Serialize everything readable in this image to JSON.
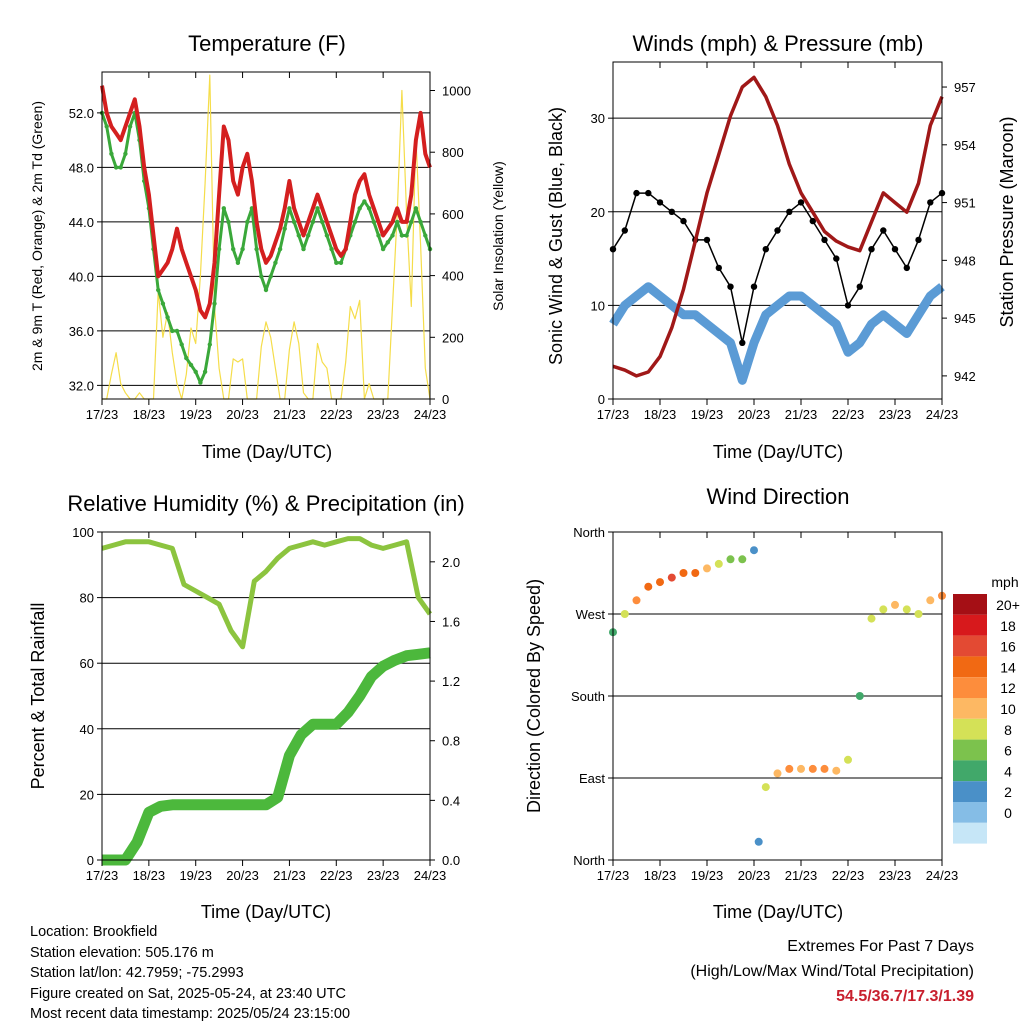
{
  "ticks_x": [
    "17/23",
    "18/23",
    "19/23",
    "20/23",
    "21/23",
    "22/23",
    "23/23",
    "24/23"
  ],
  "panels": {
    "temperature": {
      "title": "Temperature (F)",
      "xlabel": "Time (Day/UTC)",
      "ylabel_left": "2m & 9m T (Red, Orange) & 2m Td (Green)",
      "ylabel_right": "Solar Insolation (Yellow)",
      "yticks_left": [
        "32.0",
        "36.0",
        "40.0",
        "44.0",
        "48.0",
        "52.0"
      ],
      "yticks_right": [
        "0",
        "200",
        "400",
        "600",
        "800",
        "1000"
      ]
    },
    "winds": {
      "title": "Winds (mph) & Pressure (mb)",
      "xlabel": "Time (Day/UTC)",
      "ylabel_left": "Sonic Wind & Gust (Blue, Black)",
      "ylabel_right": "Station Pressure (Maroon)",
      "yticks_left": [
        "0",
        "10",
        "20",
        "30"
      ],
      "yticks_right": [
        "942",
        "945",
        "948",
        "951",
        "954",
        "957"
      ]
    },
    "humidity": {
      "title": "Relative Humidity (%) & Precipitation (in)",
      "xlabel": "Time (Day/UTC)",
      "ylabel_left": "Percent & Total Rainfall",
      "yticks_left": [
        "0",
        "20",
        "40",
        "60",
        "80",
        "100"
      ],
      "yticks_right": [
        "0.0",
        "0.4",
        "0.8",
        "1.2",
        "1.6",
        "2.0"
      ]
    },
    "direction": {
      "title": "Wind Direction",
      "xlabel": "Time (Day/UTC)",
      "ylabel_left": "Direction (Colored By Speed)",
      "yticks_left": [
        "North",
        "East",
        "South",
        "West",
        "North"
      ],
      "legend_title": "mph",
      "legend_labels": [
        "20+",
        "18",
        "16",
        "14",
        "12",
        "10",
        "8",
        "6",
        "4",
        "2",
        "0"
      ],
      "legend_colors": [
        "#a50f15",
        "#d7191c",
        "#e34a33",
        "#f16913",
        "#fd8d3c",
        "#fdb863",
        "#d4e157",
        "#7cc24d",
        "#41a86a",
        "#4a90c8",
        "#85bde6",
        "#c6e6f7"
      ]
    }
  },
  "info": {
    "location": "Location: Brookfield",
    "elevation": "Station elevation: 505.176 m",
    "latlon": "Station lat/lon: 42.7959; -75.2993",
    "created": "Figure created on Sat, 2025-05-24, at 23:40 UTC",
    "recent": "Most recent data timestamp: 2025/05/24 23:15:00"
  },
  "extremes": {
    "title": "Extremes For Past 7 Days",
    "subtitle": "(High/Low/Max Wind/Total Precipitation)",
    "values": "54.5/36.7/17.3/1.39"
  },
  "colors": {
    "temp": "#d41f1f",
    "dewpoint": "#3aa83a",
    "solar": "#f5dd4a",
    "gust": "#000000",
    "wind": "#5b9bd5",
    "pressure": "#a01818",
    "rh": "#8cc43f",
    "precip": "#4cb83c"
  },
  "chart_data": [
    {
      "type": "line",
      "title": "Temperature (F)",
      "xlabel": "Time (Day/UTC)",
      "ylabel": "2m & 9m T (Red, Orange) & 2m Td (Green)",
      "y2label": "Solar Insolation (Yellow)",
      "ylim": [
        31,
        55
      ],
      "y2lim": [
        0,
        1060
      ],
      "x": [
        0,
        0.1,
        0.2,
        0.3,
        0.4,
        0.5,
        0.6,
        0.7,
        0.8,
        0.9,
        1.0,
        1.1,
        1.2,
        1.3,
        1.4,
        1.5,
        1.6,
        1.7,
        1.8,
        1.9,
        2.0,
        2.1,
        2.2,
        2.3,
        2.4,
        2.5,
        2.6,
        2.7,
        2.8,
        2.9,
        3.0,
        3.1,
        3.2,
        3.3,
        3.4,
        3.5,
        3.6,
        3.7,
        3.8,
        3.9,
        4.0,
        4.1,
        4.2,
        4.3,
        4.4,
        4.5,
        4.6,
        4.7,
        4.8,
        4.9,
        5.0,
        5.1,
        5.2,
        5.3,
        5.4,
        5.5,
        5.6,
        5.7,
        5.8,
        5.9,
        6.0,
        6.1,
        6.2,
        6.3,
        6.4,
        6.5,
        6.6,
        6.7,
        6.8,
        6.9,
        7.0
      ],
      "series": [
        {
          "name": "2m T",
          "values": [
            54,
            52,
            51,
            50.5,
            50,
            51,
            52,
            53,
            51,
            48,
            46,
            43,
            40,
            40.5,
            41,
            42,
            43.5,
            42,
            41,
            40,
            39,
            37.5,
            37,
            38,
            41,
            46,
            51,
            50,
            47,
            46,
            48,
            49,
            47,
            44,
            42,
            41,
            41.5,
            42.5,
            43.5,
            45,
            47,
            45,
            44,
            43,
            44,
            45,
            46,
            45,
            44,
            43,
            42,
            41.5,
            42,
            44,
            46,
            47,
            47.5,
            46,
            45,
            44,
            43,
            43.5,
            44,
            45,
            44,
            44,
            46,
            50,
            52,
            49,
            48
          ]
        },
        {
          "name": "2m Td",
          "values": [
            52,
            51,
            49,
            48,
            48,
            49,
            51,
            52,
            50,
            47,
            45,
            42,
            39,
            38,
            37,
            36,
            36,
            35,
            34,
            33.5,
            33,
            32.2,
            33,
            35,
            38,
            42,
            45,
            44,
            42,
            41,
            42,
            44,
            45,
            42,
            40,
            39,
            40,
            41,
            42,
            43.5,
            45,
            44,
            43,
            42,
            43,
            44,
            45,
            44,
            43,
            42,
            41,
            41,
            42,
            43,
            44,
            45,
            45.5,
            45,
            44,
            43,
            42,
            42.5,
            43,
            44,
            43,
            43,
            44,
            45,
            44,
            43,
            42
          ]
        },
        {
          "name": "Solar Insolation",
          "values": [
            0,
            0,
            80,
            150,
            50,
            20,
            0,
            0,
            20,
            0,
            0,
            0,
            350,
            200,
            280,
            150,
            50,
            0,
            80,
            230,
            180,
            400,
            700,
            1050,
            300,
            100,
            0,
            0,
            130,
            120,
            130,
            0,
            0,
            0,
            170,
            250,
            200,
            100,
            0,
            0,
            160,
            250,
            180,
            20,
            0,
            0,
            180,
            120,
            100,
            0,
            0,
            0,
            120,
            300,
            260,
            320,
            0,
            50,
            0,
            0,
            0,
            0,
            300,
            600,
            1000,
            600,
            300,
            850,
            500,
            100,
            0
          ]
        }
      ]
    },
    {
      "type": "line",
      "title": "Winds (mph) & Pressure (mb)",
      "xlabel": "Time (Day/UTC)",
      "ylabel": "Sonic Wind & Gust (Blue, Black)",
      "y2label": "Station Pressure (Maroon)",
      "ylim": [
        0,
        36
      ],
      "y2lim": [
        940.8,
        958.3
      ],
      "x": [
        0,
        0.25,
        0.5,
        0.75,
        1.0,
        1.25,
        1.5,
        1.75,
        2.0,
        2.25,
        2.5,
        2.75,
        3.0,
        3.25,
        3.5,
        3.75,
        4.0,
        4.25,
        4.5,
        4.75,
        5.0,
        5.25,
        5.5,
        5.75,
        6.0,
        6.25,
        6.5,
        6.75,
        7.0
      ],
      "series": [
        {
          "name": "Gust",
          "values": [
            16,
            18,
            22,
            22,
            21,
            20,
            19,
            17,
            17,
            14,
            12,
            6,
            12,
            16,
            18,
            20,
            21,
            19,
            17,
            15,
            10,
            12,
            16,
            18,
            16,
            14,
            17,
            21,
            22
          ]
        },
        {
          "name": "Wind",
          "values": [
            8,
            10,
            11,
            12,
            11,
            10,
            9,
            9,
            8,
            7,
            6,
            2,
            6,
            9,
            10,
            11,
            11,
            10,
            9,
            8,
            5,
            6,
            8,
            9,
            8,
            7,
            9,
            11,
            12
          ]
        },
        {
          "name": "Pressure",
          "values": [
            942.5,
            942.3,
            942.0,
            942.2,
            943,
            944.5,
            946.5,
            949,
            951.5,
            953.5,
            955.5,
            957,
            957.5,
            956.5,
            955,
            953,
            951.5,
            950.5,
            949.5,
            949,
            948.7,
            948.5,
            950,
            951.5,
            951,
            950.5,
            952,
            955,
            956.5
          ]
        }
      ]
    },
    {
      "type": "line",
      "title": "Relative Humidity (%) & Precipitation (in)",
      "xlabel": "Time (Day/UTC)",
      "ylabel": "Percent & Total Rainfall",
      "ylim": [
        0,
        100
      ],
      "y2lim": [
        0,
        2.2
      ],
      "x": [
        0,
        0.25,
        0.5,
        0.75,
        1.0,
        1.25,
        1.5,
        1.75,
        2.0,
        2.25,
        2.5,
        2.75,
        3.0,
        3.25,
        3.5,
        3.75,
        4.0,
        4.25,
        4.5,
        4.75,
        5.0,
        5.25,
        5.5,
        5.75,
        6.0,
        6.25,
        6.5,
        6.75,
        7.0
      ],
      "series": [
        {
          "name": "Relative Humidity",
          "values": [
            95,
            96,
            97,
            97,
            97,
            96,
            95,
            84,
            82,
            80,
            78,
            70,
            65,
            85,
            88,
            92,
            95,
            96,
            97,
            96,
            97,
            98,
            98,
            96,
            95,
            96,
            97,
            80,
            75
          ]
        },
        {
          "name": "Total Precipitation",
          "values": [
            0.0,
            0.0,
            0.0,
            0.12,
            0.32,
            0.36,
            0.37,
            0.37,
            0.37,
            0.37,
            0.37,
            0.37,
            0.37,
            0.37,
            0.37,
            0.42,
            0.7,
            0.84,
            0.91,
            0.91,
            0.91,
            0.99,
            1.1,
            1.23,
            1.3,
            1.34,
            1.37,
            1.38,
            1.39
          ]
        }
      ]
    },
    {
      "type": "scatter",
      "title": "Wind Direction",
      "xlabel": "Time (Day/UTC)",
      "ylabel": "Direction (Colored By Speed)",
      "yticks": [
        "North",
        "East",
        "South",
        "West",
        "North"
      ],
      "ylim": [
        0,
        360
      ],
      "x": [
        0,
        0.25,
        0.5,
        0.75,
        1.0,
        1.25,
        1.5,
        1.75,
        2.0,
        2.25,
        2.5,
        2.75,
        3.0,
        3.1,
        3.25,
        3.5,
        3.75,
        4.0,
        4.25,
        4.5,
        4.75,
        5.0,
        5.25,
        5.5,
        5.75,
        6.0,
        6.25,
        6.5,
        6.75,
        7.0
      ],
      "series": [
        {
          "name": "Direction (deg)",
          "values": [
            250,
            270,
            285,
            300,
            305,
            310,
            315,
            315,
            320,
            325,
            330,
            330,
            340,
            20,
            80,
            95,
            100,
            100,
            100,
            100,
            98,
            110,
            180,
            265,
            275,
            280,
            275,
            270,
            285,
            290
          ]
        },
        {
          "name": "Speed (mph)",
          "values": [
            4,
            8,
            12,
            14,
            15,
            16,
            15,
            14,
            10,
            8,
            7,
            6,
            3,
            2,
            8,
            10,
            12,
            11,
            12,
            13,
            10,
            9,
            4,
            8,
            9,
            10,
            9,
            8,
            10,
            12
          ]
        }
      ]
    }
  ]
}
